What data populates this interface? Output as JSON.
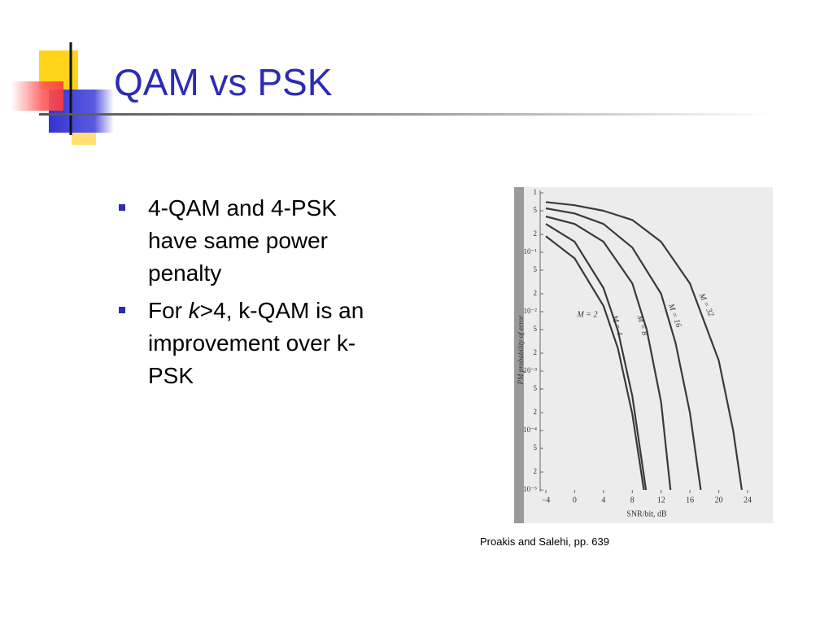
{
  "title": "QAM vs PSK",
  "bullets": [
    {
      "runs": [
        {
          "text": "4-QAM and 4-PSK have same power penalty"
        }
      ]
    },
    {
      "runs": [
        {
          "text": "For "
        },
        {
          "text": "k",
          "italic": true
        },
        {
          "text": ">4, k-QAM is an improvement over k-PSK"
        }
      ]
    }
  ],
  "caption": "Proakis and Salehi, pp. 639",
  "chart_data": {
    "type": "line",
    "xlabel": "SNR/bit, dB",
    "ylabel": "PM probability of error",
    "ylog": true,
    "grid": false,
    "color": "#3a3a3a",
    "xlim": [
      -4,
      24
    ],
    "ylim": [
      1e-05,
      1
    ],
    "xticks": [
      {
        "value": -4,
        "label": "−4"
      },
      0,
      4,
      8,
      12,
      16,
      20,
      24
    ],
    "yticks": [
      1,
      {
        "value": 0.5,
        "label": "5"
      },
      {
        "value": 0.2,
        "label": "2"
      },
      {
        "value": 0.1,
        "label": "10⁻¹"
      },
      {
        "value": 0.05,
        "label": "5"
      },
      {
        "value": 0.02,
        "label": "2"
      },
      {
        "value": 0.01,
        "label": "10⁻²"
      },
      {
        "value": 0.005,
        "label": "5"
      },
      {
        "value": 0.002,
        "label": "2"
      },
      {
        "value": 0.001,
        "label": "10⁻³"
      },
      {
        "value": 0.0005,
        "label": "5"
      },
      {
        "value": 0.0002,
        "label": "2"
      },
      {
        "value": 0.0001,
        "label": "10⁻⁴"
      },
      {
        "value": 5e-05,
        "label": "5"
      },
      {
        "value": 2e-05,
        "label": "2"
      },
      {
        "value": 1e-05,
        "label": "10⁻⁵"
      }
    ],
    "series": [
      {
        "name": "M = 2",
        "x": [
          -4,
          0,
          4,
          6,
          8,
          9.6
        ],
        "values": [
          0.186,
          0.079,
          0.0125,
          0.0024,
          0.00019,
          1e-05
        ]
      },
      {
        "name": "M = 4",
        "x": [
          -4,
          0,
          4,
          6,
          8,
          9.9
        ],
        "values": [
          0.3,
          0.15,
          0.025,
          0.0048,
          0.00038,
          1e-05
        ]
      },
      {
        "name": "M = 8",
        "x": [
          -4,
          0,
          4,
          8,
          10,
          12,
          13.3
        ],
        "values": [
          0.4,
          0.3,
          0.15,
          0.03,
          0.005,
          0.0003,
          1e-05
        ]
      },
      {
        "name": "M = 16",
        "x": [
          -4,
          0,
          4,
          8,
          12,
          14,
          16,
          17.5
        ],
        "values": [
          0.55,
          0.45,
          0.3,
          0.12,
          0.02,
          0.003,
          0.0002,
          1e-05
        ]
      },
      {
        "name": "M = 32",
        "x": [
          -4,
          0,
          4,
          8,
          12,
          16,
          20,
          22,
          23.2
        ],
        "values": [
          0.7,
          0.62,
          0.5,
          0.35,
          0.15,
          0.03,
          0.0015,
          0.0001,
          1e-05
        ]
      }
    ]
  }
}
